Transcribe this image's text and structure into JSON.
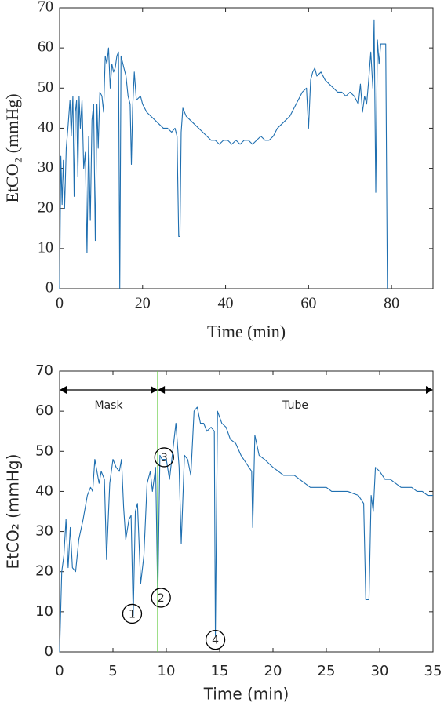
{
  "chart_data": [
    {
      "type": "line",
      "xlabel": "Time (min)",
      "ylabel": "EtCO₂ (mmHg)",
      "color": "#1f6fb0",
      "xlim": [
        0,
        90
      ],
      "ylim": [
        0,
        70
      ],
      "xticks": [
        0,
        20,
        40,
        60,
        80
      ],
      "yticks": [
        0,
        10,
        20,
        30,
        40,
        50,
        60,
        70
      ],
      "grid": false,
      "x": [
        0,
        0.3,
        0.6,
        0.9,
        1.2,
        1.6,
        2,
        2.5,
        2.8,
        3.2,
        3.5,
        3.8,
        4.1,
        4.4,
        4.7,
        5,
        5.4,
        5.8,
        6.2,
        6.6,
        7,
        7.4,
        7.8,
        8.2,
        8.6,
        9,
        9.3,
        9.7,
        10.2,
        10.6,
        11,
        11.4,
        11.8,
        12.2,
        12.6,
        13,
        13.4,
        13.8,
        14.2,
        14.5,
        14.8,
        15.5,
        16,
        16.5,
        17,
        17.3,
        17.6,
        18,
        18.5,
        19.5,
        20,
        21,
        22,
        23,
        24,
        25,
        26,
        27,
        27.8,
        28.3,
        28.7,
        29,
        29.3,
        29.7,
        30.5,
        31.5,
        32.5,
        33.5,
        34.5,
        35.5,
        36.5,
        37.5,
        38.5,
        39.5,
        40.5,
        41.5,
        42.5,
        43.5,
        44.5,
        45.5,
        46.5,
        47.5,
        48.5,
        49.5,
        50.5,
        51.5,
        52.5,
        53.5,
        54.5,
        55.5,
        56.5,
        57.5,
        58.5,
        59.5,
        60,
        60.5,
        61,
        61.5,
        62,
        63,
        64,
        65,
        66,
        67,
        68,
        69,
        70,
        71,
        72,
        72.5,
        73,
        73.5,
        74,
        74.5,
        75,
        75.5,
        75.8,
        76.2,
        76.6,
        77,
        77.4,
        78,
        78.6,
        79
      ],
      "values": [
        0,
        33,
        21,
        32,
        20,
        35,
        40,
        47,
        38,
        48,
        23,
        44,
        47,
        28,
        48,
        40,
        47,
        30,
        34,
        9,
        38,
        17,
        42,
        46,
        12,
        46,
        35,
        49,
        48,
        44,
        58,
        56,
        60,
        50,
        56,
        54,
        55,
        58,
        59,
        0,
        58,
        55,
        53,
        48,
        46,
        31,
        45,
        54,
        47,
        48,
        46,
        44,
        43,
        42,
        41,
        40,
        40,
        39,
        40,
        38,
        13,
        13,
        39,
        45,
        43,
        42,
        41,
        40,
        39,
        38,
        37,
        37,
        36,
        37,
        37,
        36,
        37,
        36,
        37,
        37,
        36,
        37,
        38,
        37,
        37,
        38,
        40,
        41,
        42,
        43,
        45,
        47,
        49,
        50,
        40,
        52,
        54,
        55,
        53,
        54,
        52,
        51,
        50,
        49,
        49,
        48,
        49,
        48,
        46,
        51,
        44,
        48,
        46,
        52,
        59,
        50,
        67,
        24,
        62,
        56,
        61,
        61,
        61,
        0
      ]
    },
    {
      "type": "line",
      "xlabel": "Time (min)",
      "ylabel": "EtCO₂ (mmHg)",
      "color": "#1f6fb0",
      "xlim": [
        0,
        35
      ],
      "ylim": [
        0,
        70
      ],
      "xticks": [
        0,
        5,
        10,
        15,
        20,
        25,
        30,
        35
      ],
      "yticks": [
        0,
        10,
        20,
        30,
        40,
        50,
        60,
        70
      ],
      "grid": false,
      "x": [
        0,
        0.2,
        0.4,
        0.6,
        0.8,
        1,
        1.2,
        1.5,
        1.8,
        2.2,
        2.6,
        2.9,
        3.1,
        3.3,
        3.7,
        3.9,
        4.2,
        4.4,
        4.7,
        5,
        5.3,
        5.6,
        5.8,
        6,
        6.2,
        6.5,
        6.7,
        6.9,
        7.1,
        7.3,
        7.6,
        7.9,
        8.2,
        8.5,
        8.7,
        9,
        9.2,
        9.4,
        9.6,
        10,
        10.3,
        10.6,
        10.9,
        11.2,
        11.4,
        11.7,
        12,
        12.3,
        12.6,
        12.9,
        13.2,
        13.5,
        13.8,
        14.2,
        14.5,
        14.6,
        14.8,
        15.2,
        15.6,
        16,
        16.5,
        17,
        17.5,
        18,
        18.1,
        18.3,
        18.7,
        19.2,
        19.6,
        20,
        20.5,
        21,
        22,
        22.5,
        23,
        23.5,
        24,
        25,
        25.5,
        26,
        27,
        28,
        28.5,
        28.7,
        29,
        29.2,
        29.4,
        29.6,
        30,
        30.5,
        31,
        31.5,
        32,
        33,
        33.5,
        34,
        34.5,
        35
      ],
      "values": [
        0,
        20,
        24,
        33,
        21,
        31,
        21,
        20,
        28,
        33,
        39,
        41,
        40,
        48,
        42,
        45,
        43,
        23,
        42,
        48,
        46,
        45,
        48,
        36,
        28,
        33,
        34,
        9,
        35,
        37,
        17,
        24,
        42,
        45,
        40,
        46,
        13,
        49,
        48,
        48,
        43,
        50,
        57,
        46,
        27,
        49,
        48,
        44,
        60,
        61,
        57,
        57,
        55,
        56,
        55,
        4,
        60,
        57,
        56,
        53,
        52,
        49,
        47,
        45,
        31,
        54,
        49,
        48,
        47,
        46,
        45,
        44,
        44,
        43,
        42,
        41,
        41,
        41,
        40,
        40,
        40,
        39,
        37,
        13,
        13,
        39,
        35,
        46,
        45,
        43,
        43,
        42,
        41,
        41,
        40,
        40,
        39,
        39
      ],
      "vline": 9.2,
      "vline_color": "#66cc44",
      "regions": [
        {
          "label": "Mask",
          "start": 0,
          "end": 9.2
        },
        {
          "label": "Tube",
          "start": 9.2,
          "end": 35
        }
      ],
      "annotations": [
        {
          "text": "1",
          "x": 6.8,
          "y": 9.5
        },
        {
          "text": "2",
          "x": 9.5,
          "y": 13.5
        },
        {
          "text": "3",
          "x": 9.8,
          "y": 48.5
        },
        {
          "text": "4",
          "x": 14.6,
          "y": 3
        }
      ]
    }
  ]
}
